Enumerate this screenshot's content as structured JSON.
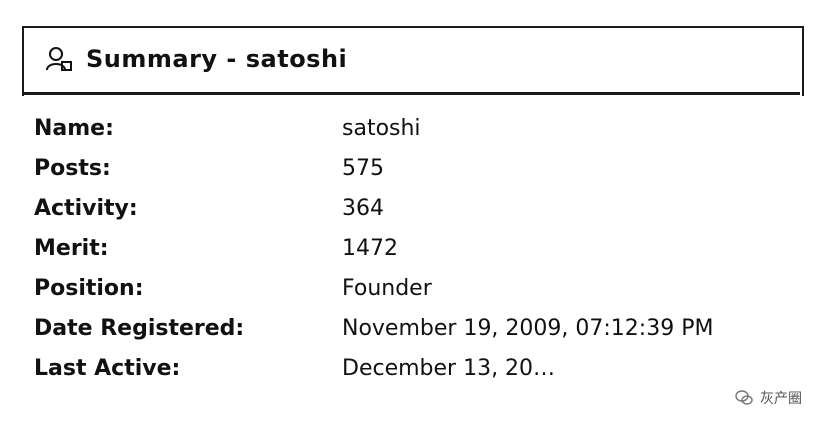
{
  "header": {
    "title": "Summary - satoshi",
    "icon": "user-profile-icon"
  },
  "fields": [
    {
      "label": "Name:",
      "value": "satoshi"
    },
    {
      "label": "Posts:",
      "value": "575"
    },
    {
      "label": "Activity:",
      "value": "364"
    },
    {
      "label": "Merit:",
      "value": "1472"
    },
    {
      "label": "Position:",
      "value": "Founder"
    },
    {
      "label": "Date Registered:",
      "value": "November 19, 2009, 07:12:39 PM"
    },
    {
      "label": "Last Active:",
      "value": "December 13, 20…"
    }
  ],
  "watermark": {
    "text": "灰产圈",
    "icon": "wechat-icon"
  }
}
